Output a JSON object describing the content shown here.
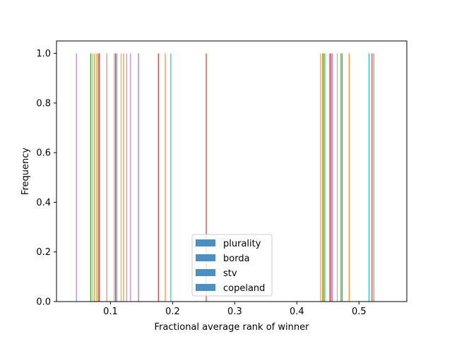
{
  "chart_data": {
    "type": "bar",
    "subtype": "histogram",
    "title": "",
    "xlabel": "Fractional average rank of winner",
    "ylabel": "Frequency",
    "xlim": [
      0.013,
      0.577
    ],
    "ylim": [
      0,
      1.05
    ],
    "xticks": [
      "0.1",
      "0.2",
      "0.3",
      "0.4",
      "0.5"
    ],
    "xtick_values": [
      0.1,
      0.2,
      0.3,
      0.4,
      0.5
    ],
    "yticks": [
      "0.0",
      "0.2",
      "0.4",
      "0.6",
      "0.8",
      "1.0"
    ],
    "ytick_values": [
      0,
      0.2,
      0.4,
      0.6,
      0.8,
      1.0
    ],
    "grid": false,
    "legend": {
      "placement": "lower-center",
      "entries": [
        "plurality",
        "borda",
        "stv",
        "copeland"
      ],
      "swatch_color": "#4b8fc3"
    },
    "bar_height": 1.0,
    "bars": [
      {
        "x": 0.045,
        "color": "#b675d4"
      },
      {
        "x": 0.068,
        "color": "#2ca02c"
      },
      {
        "x": 0.071,
        "color": "#bcbd22"
      },
      {
        "x": 0.074,
        "color": "#ff7f0e"
      },
      {
        "x": 0.077,
        "color": "#bcbd22"
      },
      {
        "x": 0.08,
        "color": "#8c564b"
      },
      {
        "x": 0.082,
        "color": "#d62728"
      },
      {
        "x": 0.094,
        "color": "#ff7f0e"
      },
      {
        "x": 0.106,
        "color": "#e377c2"
      },
      {
        "x": 0.108,
        "color": "#8c564b"
      },
      {
        "x": 0.11,
        "color": "#7f7f7f"
      },
      {
        "x": 0.117,
        "color": "#bcbd22"
      },
      {
        "x": 0.121,
        "color": "#ff7f0e"
      },
      {
        "x": 0.126,
        "color": "#d4a017"
      },
      {
        "x": 0.132,
        "color": "#e377c2"
      },
      {
        "x": 0.145,
        "color": "#9467bd"
      },
      {
        "x": 0.177,
        "color": "#d62728"
      },
      {
        "x": 0.188,
        "color": "#ff7f0e"
      },
      {
        "x": 0.197,
        "color": "#17becf"
      },
      {
        "x": 0.254,
        "color": "#d62728"
      },
      {
        "x": 0.438,
        "color": "#bcbd22"
      },
      {
        "x": 0.441,
        "color": "#ff7f0e"
      },
      {
        "x": 0.443,
        "color": "#2ca02c"
      },
      {
        "x": 0.445,
        "color": "#17becf"
      },
      {
        "x": 0.453,
        "color": "#d62728"
      },
      {
        "x": 0.455,
        "color": "#8c564b"
      },
      {
        "x": 0.457,
        "color": "#e377c2"
      },
      {
        "x": 0.465,
        "color": "#bcbd22"
      },
      {
        "x": 0.471,
        "color": "#2ca02c"
      },
      {
        "x": 0.473,
        "color": "#7f7f7f"
      },
      {
        "x": 0.484,
        "color": "#ff7f0e"
      },
      {
        "x": 0.516,
        "color": "#17becf"
      },
      {
        "x": 0.521,
        "color": "#d62728"
      },
      {
        "x": 0.524,
        "color": "#ff7f0e"
      }
    ]
  }
}
